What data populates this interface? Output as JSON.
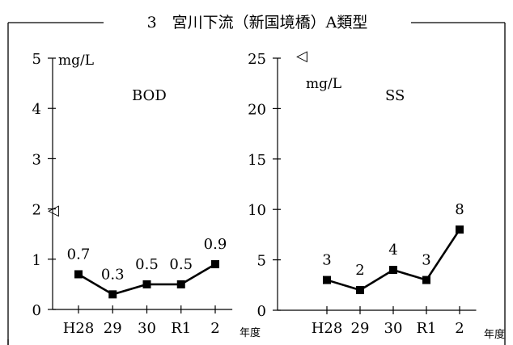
{
  "title": "3　宮川下流（新国境橋）A類型",
  "marker_symbol": "◁",
  "chart_data": [
    {
      "type": "line",
      "title": "BOD",
      "ylabel": "mg/L",
      "xlabel": "年度",
      "categories": [
        "H28",
        "29",
        "30",
        "R1",
        "2"
      ],
      "values": [
        0.7,
        0.3,
        0.5,
        0.5,
        0.9
      ],
      "value_labels": [
        "0.7",
        "0.3",
        "0.5",
        "0.5",
        "0.9"
      ],
      "ylim": [
        0,
        5
      ],
      "yticks": [
        0,
        1,
        2,
        3,
        4,
        5
      ],
      "ytick_labels": [
        "0",
        "1",
        "2",
        "3",
        "4",
        "5"
      ],
      "standard_value": 2,
      "grid": false
    },
    {
      "type": "line",
      "title": "SS",
      "ylabel": "mg/L",
      "xlabel": "年度",
      "categories": [
        "H28",
        "29",
        "30",
        "R1",
        "2"
      ],
      "values": [
        3,
        2,
        4,
        3,
        8
      ],
      "value_labels": [
        "3",
        "2",
        "4",
        "3",
        "8"
      ],
      "ylim": [
        0,
        25
      ],
      "yticks": [
        0,
        5,
        10,
        15,
        20,
        25
      ],
      "ytick_labels": [
        "0",
        "5",
        "10",
        "15",
        "20",
        "25"
      ],
      "standard_value": 25,
      "grid": false
    }
  ]
}
